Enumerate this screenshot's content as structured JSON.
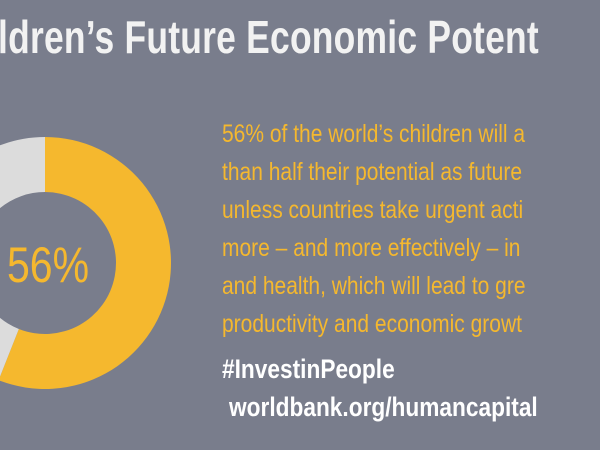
{
  "title": "ldren’s Future Economic Potent",
  "body_lines": [
    "56% of the world’s children will a",
    "than half their potential as future",
    "unless countries take urgent acti",
    "more – and more effectively – in",
    "and health, which will lead to gre",
    "productivity and economic growt"
  ],
  "hashtag": "#InvestinPeople",
  "url": "worldbank.org/humancapital",
  "colors": {
    "background": "#797d8c",
    "accent": "#f5b82e",
    "remainder": "#dcdcdc",
    "title": "#f2f2f2"
  },
  "chart_data": {
    "type": "pie",
    "style": "donut",
    "center_label": "56%",
    "values": [
      56,
      44
    ],
    "colors": [
      "#f5b82e",
      "#dcdcdc"
    ]
  }
}
